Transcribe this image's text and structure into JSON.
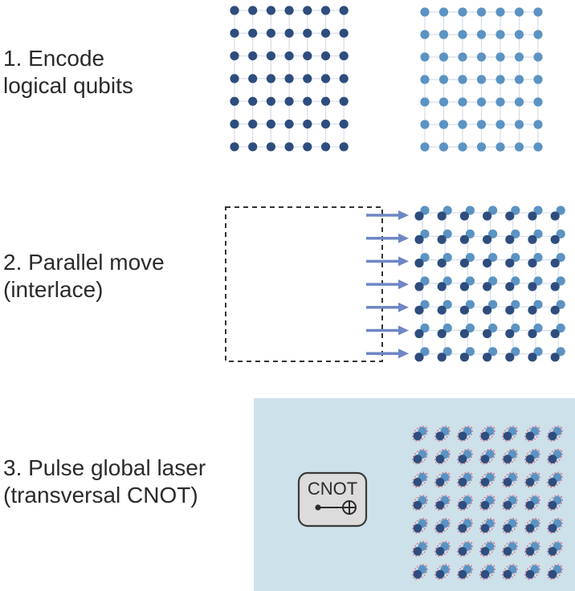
{
  "steps": [
    {
      "line1": "1. Encode",
      "line2": "logical qubits"
    },
    {
      "line1": "2. Parallel move",
      "line2": "(interlace)"
    },
    {
      "line1": "3. Pulse global laser",
      "line2": "(transversal CNOT)"
    }
  ],
  "cnot_box": {
    "label": "CNOT"
  },
  "colors": {
    "dark_qubit": "#2e4d7e",
    "light_qubit": "#5b93c3",
    "grid_line": "#d7dde6",
    "arrow": "#6f86c6",
    "laser_region": "#cde1ea",
    "pulse_ring": "#e05565",
    "dashed_box": "#333333"
  },
  "grid": {
    "rows": 7,
    "cols": 7
  }
}
